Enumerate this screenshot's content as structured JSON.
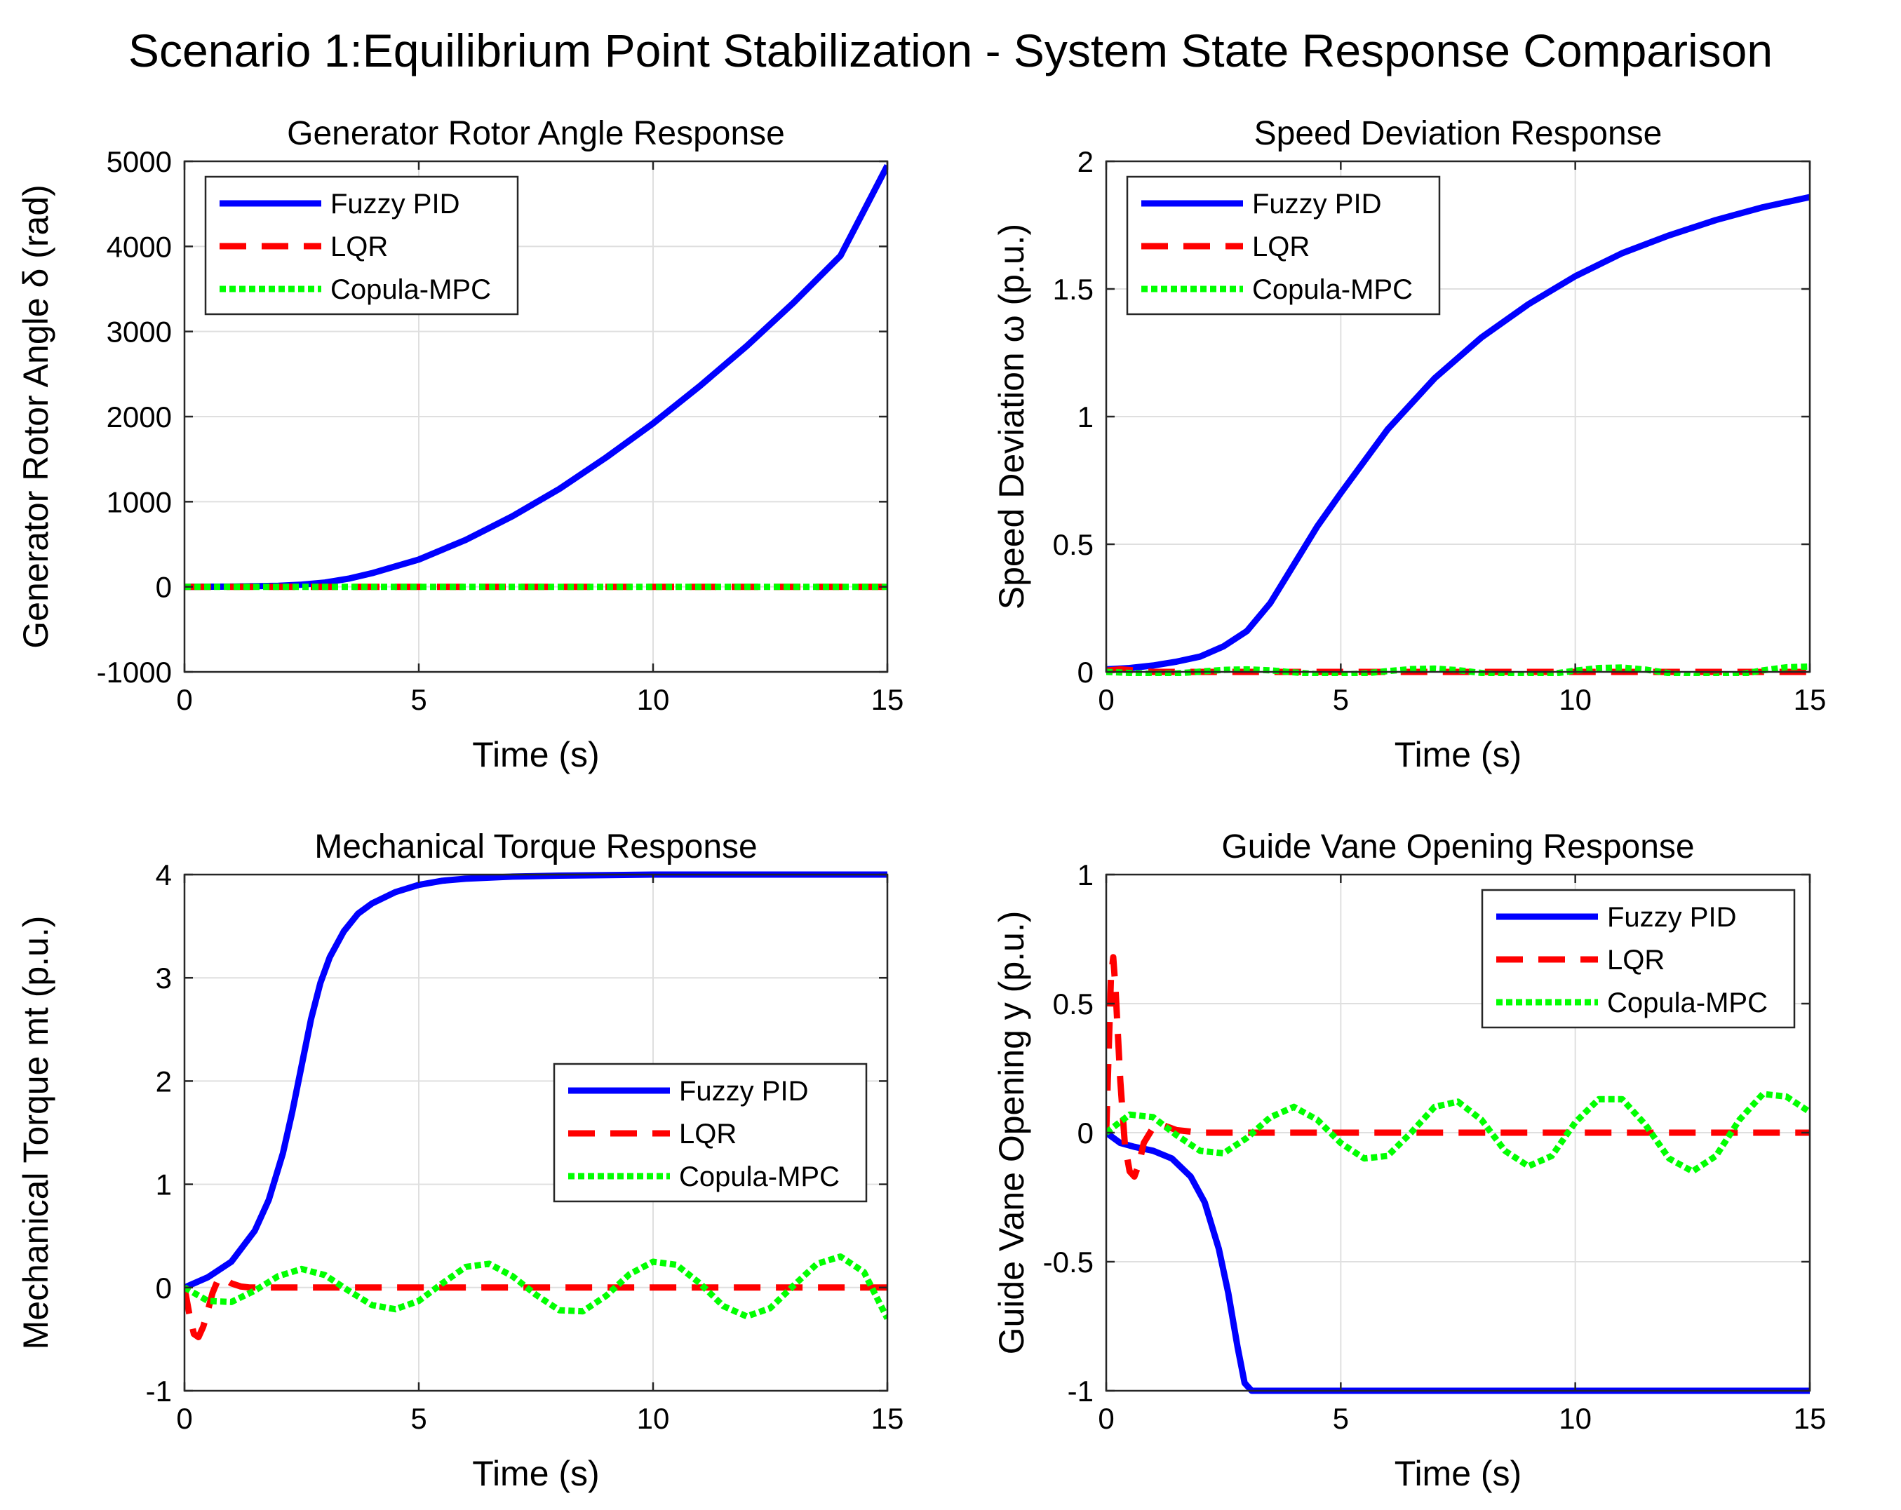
{
  "figure_title": "Scenario 1:Equilibrium Point Stabilization - System State Response Comparison",
  "legend_labels": [
    "Fuzzy PID",
    "LQR",
    "Copula-MPC"
  ],
  "colors": {
    "fuzzy_pid": "#0000ff",
    "lqr": "#ff0000",
    "copula_mpc": "#00ff00",
    "grid": "#dfdfdf",
    "axes": "#262626"
  },
  "chart_data": [
    {
      "type": "line",
      "title": "Generator Rotor Angle Response",
      "xlabel": "Time (s)",
      "ylabel": "Generator Rotor Angle δ (rad)",
      "xlim": [
        0,
        15
      ],
      "ylim": [
        -1000,
        5000
      ],
      "xticks": [
        0,
        5,
        10,
        15
      ],
      "yticks": [
        -1000,
        0,
        1000,
        2000,
        3000,
        4000,
        5000
      ],
      "legend_position": "top-left",
      "series": [
        {
          "name": "Fuzzy PID",
          "color": "#0000ff",
          "style": "solid",
          "x": [
            0,
            1,
            2,
            2.5,
            3,
            3.5,
            4,
            5,
            6,
            7,
            8,
            9,
            10,
            11,
            12,
            13,
            14,
            15
          ],
          "y": [
            0,
            2,
            12,
            25,
            50,
            95,
            160,
            320,
            550,
            830,
            1150,
            1520,
            1920,
            2360,
            2830,
            3340,
            3890,
            4950
          ]
        },
        {
          "name": "LQR",
          "color": "#ff0000",
          "style": "dashed",
          "x": [
            0,
            15
          ],
          "y": [
            0,
            0
          ]
        },
        {
          "name": "Copula-MPC",
          "color": "#00ff00",
          "style": "dotted",
          "x": [
            0,
            15
          ],
          "y": [
            0,
            0
          ]
        }
      ]
    },
    {
      "type": "line",
      "title": "Speed Deviation Response",
      "xlabel": "Time (s)",
      "ylabel": "Speed Deviation  ω (p.u.)",
      "xlim": [
        0,
        15
      ],
      "ylim": [
        0,
        2
      ],
      "xticks": [
        0,
        5,
        10,
        15
      ],
      "yticks": [
        0,
        0.5,
        1,
        1.5,
        2
      ],
      "legend_position": "top-left",
      "series": [
        {
          "name": "Fuzzy PID",
          "color": "#0000ff",
          "style": "solid",
          "x": [
            0,
            0.5,
            1,
            1.5,
            2,
            2.5,
            3,
            3.5,
            4,
            4.5,
            5,
            6,
            7,
            8,
            9,
            10,
            11,
            12,
            13,
            14,
            15
          ],
          "y": [
            0.01,
            0.015,
            0.025,
            0.04,
            0.06,
            0.1,
            0.16,
            0.27,
            0.42,
            0.57,
            0.7,
            0.95,
            1.15,
            1.31,
            1.44,
            1.55,
            1.64,
            1.71,
            1.77,
            1.82,
            1.86
          ]
        },
        {
          "name": "LQR",
          "color": "#ff0000",
          "style": "dashed",
          "x": [
            0,
            0.3,
            1,
            15
          ],
          "y": [
            0.005,
            0.01,
            0,
            0
          ]
        },
        {
          "name": "Copula-MPC",
          "color": "#00ff00",
          "style": "dotted",
          "x": [
            0,
            0.5,
            1.0,
            1.5,
            2.0,
            2.5,
            3.0,
            3.5,
            4.0,
            4.5,
            5.0,
            5.5,
            6.0,
            6.5,
            7.0,
            7.5,
            8.0,
            8.5,
            9.0,
            9.5,
            10.0,
            10.5,
            11.0,
            11.5,
            12.0,
            12.5,
            13.0,
            13.5,
            14.0,
            14.5,
            15.0
          ],
          "y": [
            0.0,
            -0.004,
            -0.008,
            -0.006,
            0.001,
            0.008,
            0.01,
            0.006,
            -0.002,
            -0.009,
            -0.011,
            -0.006,
            0.003,
            0.011,
            0.013,
            0.007,
            -0.004,
            -0.013,
            -0.015,
            -0.008,
            0.005,
            0.015,
            0.017,
            0.009,
            -0.005,
            -0.016,
            -0.019,
            -0.01,
            0.006,
            0.018,
            0.021
          ]
        }
      ]
    },
    {
      "type": "line",
      "title": "Mechanical Torque Response",
      "xlabel": "Time (s)",
      "ylabel": "Mechanical Torque  mt (p.u.)",
      "xlim": [
        0,
        15
      ],
      "ylim": [
        -1,
        4
      ],
      "xticks": [
        0,
        5,
        10,
        15
      ],
      "yticks": [
        -1,
        0,
        1,
        2,
        3,
        4
      ],
      "legend_position": "center-right",
      "series": [
        {
          "name": "Fuzzy PID",
          "color": "#0000ff",
          "style": "solid",
          "x": [
            0,
            0.5,
            1,
            1.5,
            1.8,
            2.1,
            2.3,
            2.5,
            2.7,
            2.9,
            3.1,
            3.4,
            3.7,
            4,
            4.5,
            5,
            5.5,
            6,
            7,
            8,
            10,
            15
          ],
          "y": [
            0,
            0.1,
            0.25,
            0.55,
            0.85,
            1.3,
            1.7,
            2.15,
            2.6,
            2.95,
            3.2,
            3.45,
            3.62,
            3.72,
            3.83,
            3.9,
            3.94,
            3.96,
            3.98,
            3.99,
            4.0,
            4.0
          ]
        },
        {
          "name": "LQR",
          "color": "#ff0000",
          "style": "dashed",
          "x": [
            0,
            0.1,
            0.2,
            0.3,
            0.4,
            0.5,
            0.6,
            0.7,
            0.8,
            0.9,
            1.0,
            1.2,
            1.4,
            15
          ],
          "y": [
            0,
            -0.25,
            -0.45,
            -0.48,
            -0.38,
            -0.22,
            -0.05,
            0.06,
            0.09,
            0.07,
            0.04,
            0.01,
            0,
            0
          ]
        },
        {
          "name": "Copula-MPC",
          "color": "#00ff00",
          "style": "dotted",
          "x": [
            0.0,
            0.5,
            1.0,
            1.5,
            2.0,
            2.5,
            3.0,
            3.5,
            4.0,
            4.5,
            5.0,
            5.5,
            6.0,
            6.5,
            7.0,
            7.5,
            8.0,
            8.5,
            9.0,
            9.5,
            10.0,
            10.5,
            11.0,
            11.5,
            12.0,
            12.5,
            13.0,
            13.5,
            14.0,
            14.5,
            15.0
          ],
          "y": [
            0.0,
            -0.13,
            -0.14,
            -0.03,
            0.11,
            0.18,
            0.12,
            -0.03,
            -0.17,
            -0.21,
            -0.13,
            0.04,
            0.2,
            0.23,
            0.11,
            -0.07,
            -0.22,
            -0.23,
            -0.08,
            0.13,
            0.25,
            0.22,
            0.04,
            -0.18,
            -0.28,
            -0.2,
            0.02,
            0.23,
            0.3,
            0.15,
            -0.3
          ]
        }
      ]
    },
    {
      "type": "line",
      "title": "Guide Vane Opening Response",
      "xlabel": "Time (s)",
      "ylabel": "Guide Vane Opening y (p.u.)",
      "xlim": [
        0,
        15
      ],
      "ylim": [
        -1,
        1
      ],
      "xticks": [
        0,
        5,
        10,
        15
      ],
      "yticks": [
        -1,
        -0.5,
        0,
        0.5,
        1
      ],
      "legend_position": "top-right",
      "series": [
        {
          "name": "Fuzzy PID",
          "color": "#0000ff",
          "style": "solid",
          "x": [
            0,
            0.3,
            0.6,
            1,
            1.4,
            1.8,
            2.1,
            2.4,
            2.6,
            2.8,
            2.95,
            3.1,
            3.3,
            15
          ],
          "y": [
            0,
            -0.04,
            -0.055,
            -0.07,
            -0.1,
            -0.17,
            -0.27,
            -0.45,
            -0.62,
            -0.83,
            -0.97,
            -1.0,
            -1.0,
            -1.0
          ]
        },
        {
          "name": "LQR",
          "color": "#ff0000",
          "style": "dashed",
          "x": [
            0,
            0.05,
            0.1,
            0.15,
            0.2,
            0.3,
            0.4,
            0.5,
            0.6,
            0.7,
            0.8,
            1.0,
            1.2,
            1.5,
            2.0,
            15
          ],
          "y": [
            0,
            0.3,
            0.6,
            0.68,
            0.55,
            0.2,
            -0.05,
            -0.15,
            -0.17,
            -0.12,
            -0.04,
            0.02,
            0.03,
            0.01,
            0,
            0
          ]
        },
        {
          "name": "Copula-MPC",
          "color": "#00ff00",
          "style": "dotted",
          "x": [
            0.0,
            0.5,
            1.0,
            1.5,
            2.0,
            2.5,
            3.0,
            3.5,
            4.0,
            4.5,
            5.0,
            5.5,
            6.0,
            6.5,
            7.0,
            7.5,
            8.0,
            8.5,
            9.0,
            9.5,
            10.0,
            10.5,
            11.0,
            11.5,
            12.0,
            12.5,
            13.0,
            13.5,
            14.0,
            14.5,
            15.0
          ],
          "y": [
            0.0,
            0.07,
            0.06,
            -0.01,
            -0.07,
            -0.08,
            -0.02,
            0.06,
            0.1,
            0.05,
            -0.04,
            -0.1,
            -0.09,
            0.0,
            0.1,
            0.12,
            0.05,
            -0.07,
            -0.13,
            -0.09,
            0.04,
            0.13,
            0.13,
            0.03,
            -0.1,
            -0.15,
            -0.09,
            0.05,
            0.15,
            0.14,
            0.08
          ]
        }
      ]
    }
  ]
}
